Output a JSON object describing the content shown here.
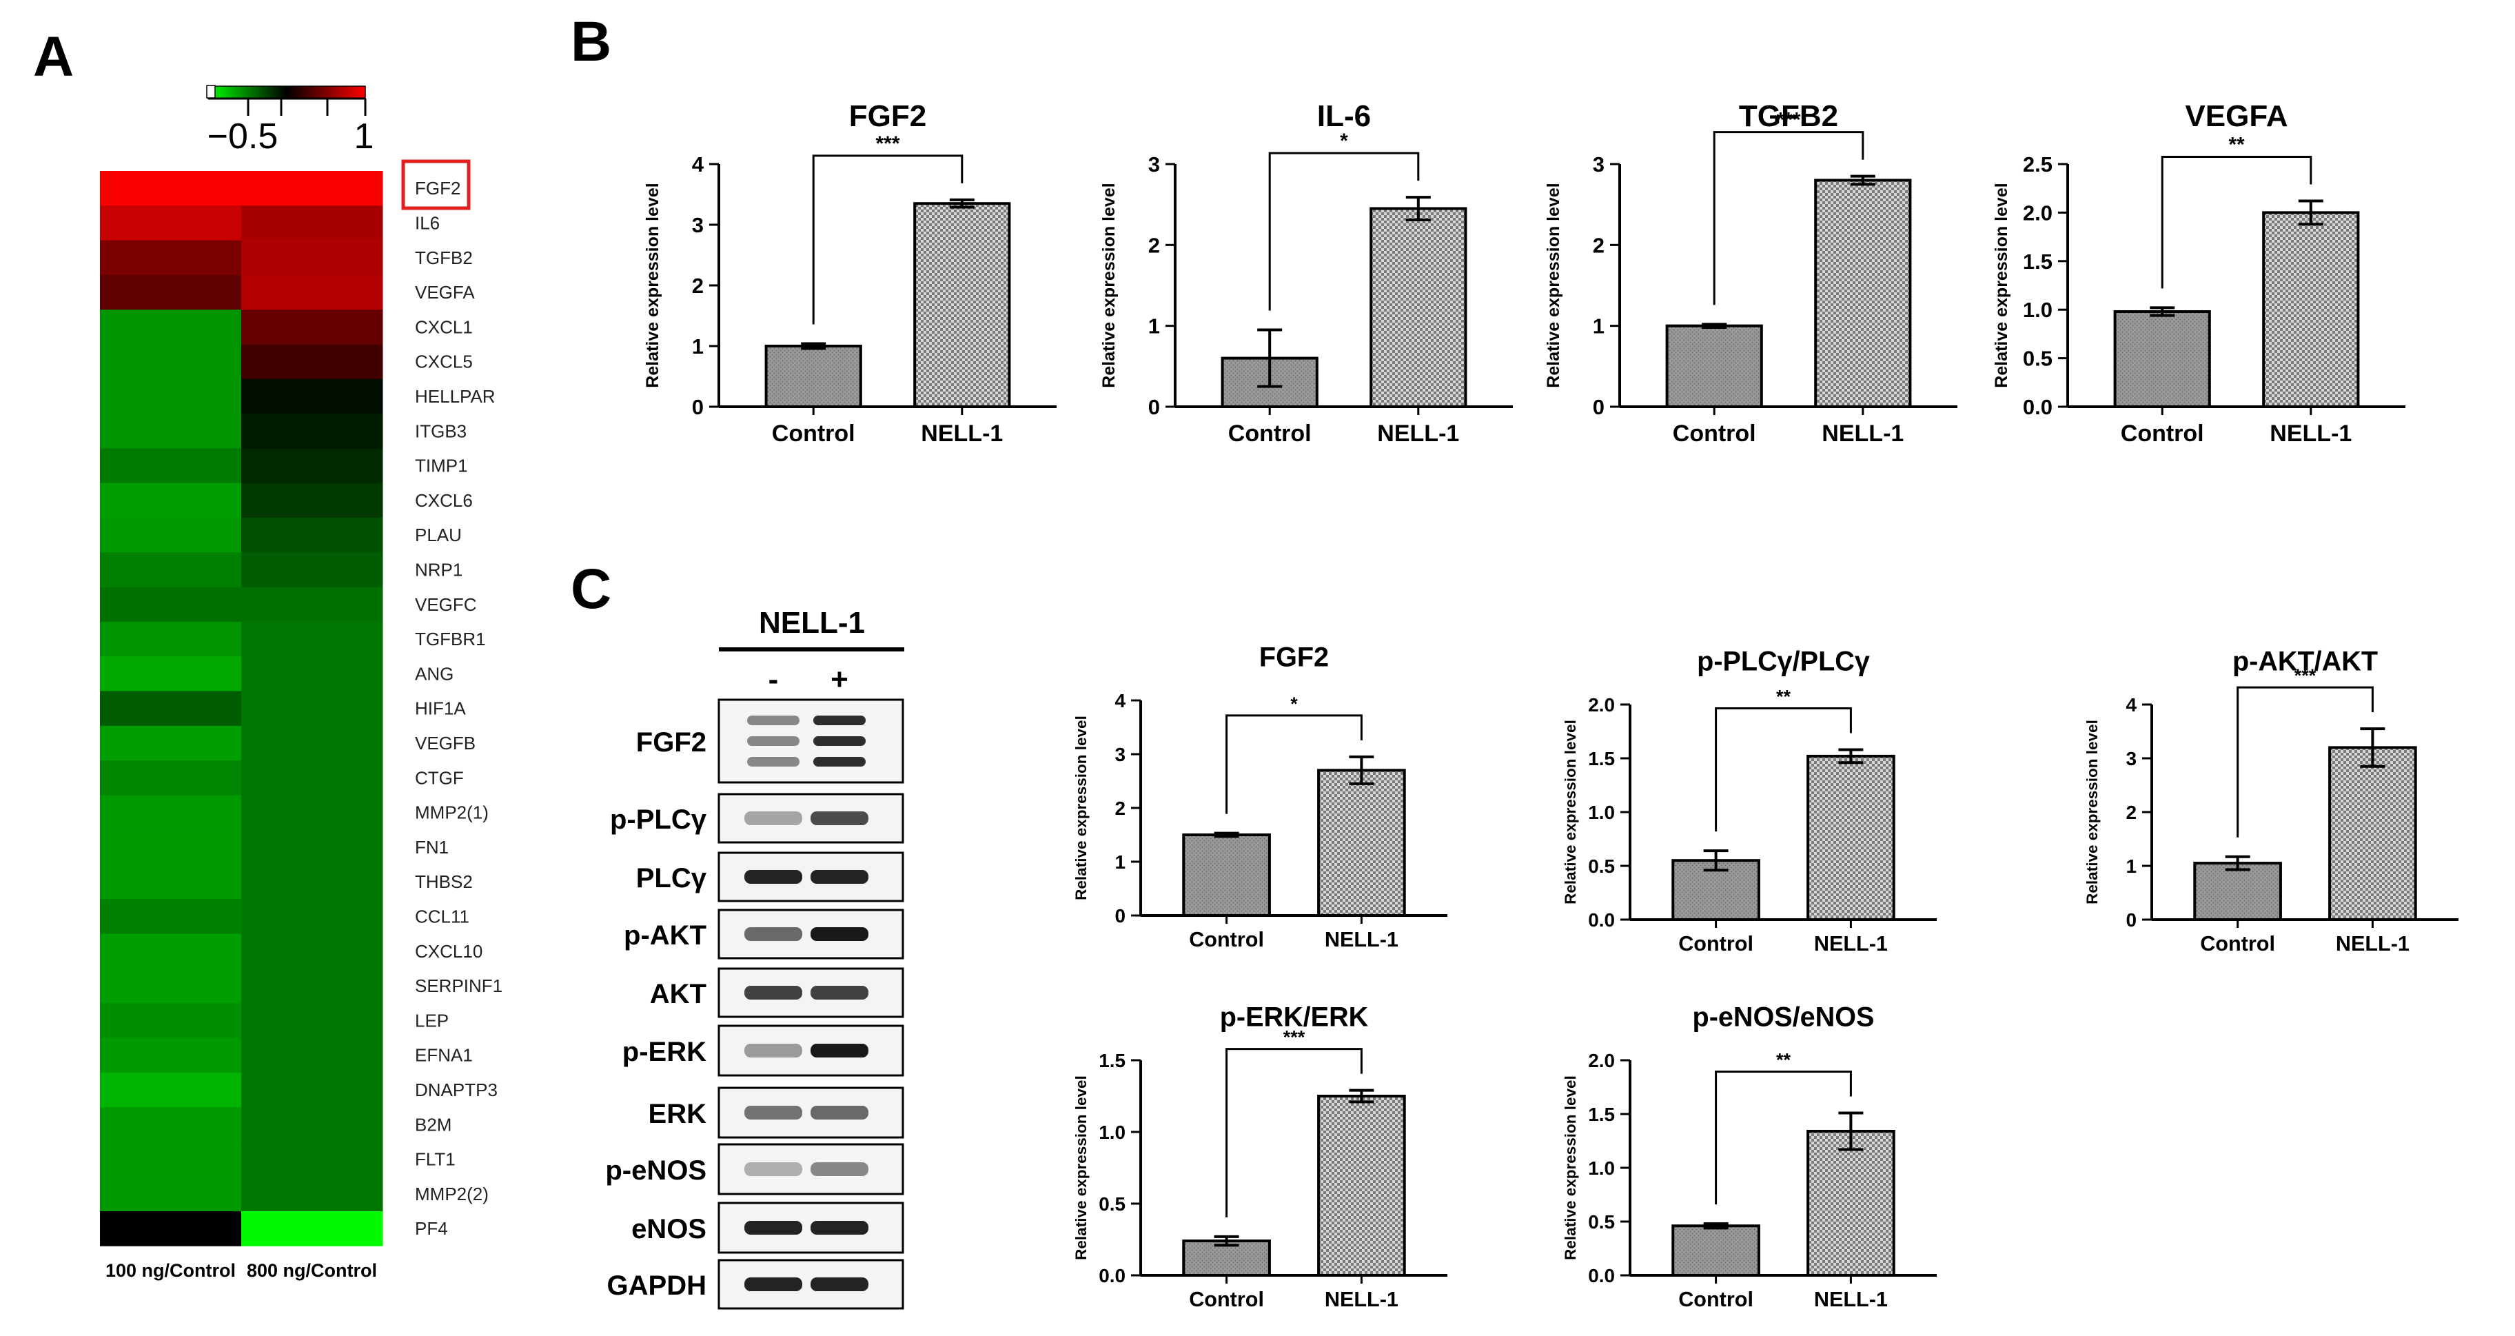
{
  "panel_labels": {
    "a": "A",
    "b": "B",
    "c": "C"
  },
  "colors": {
    "bar_fill": "#9a9a9a",
    "axis": "#000000",
    "highlight_box": "#e02020",
    "heat_low": "#00ff00",
    "heat_mid": "#000000",
    "heat_high": "#ff0000",
    "band": "#202020"
  },
  "heatmap": {
    "scale": {
      "min": -1,
      "max": 1,
      "tick_labels": [
        "−0.5",
        "1"
      ]
    },
    "columns": [
      "100 ng/Control",
      "800 ng/Control"
    ],
    "genes": [
      "FGF2",
      "IL6",
      "TGFB2",
      "VEGFA",
      "CXCL1",
      "CXCL5",
      "HELLPAR",
      "ITGB3",
      "TIMP1",
      "CXCL6",
      "PLAU",
      "NRP1",
      "VEGFC",
      "TGFBR1",
      "ANG",
      "HIF1A",
      "VEGFB",
      "CTGF",
      "MMP2(1)",
      "FN1",
      "THBS2",
      "CCL11",
      "CXCL10",
      "SERPINF1",
      "LEP",
      "EFNA1",
      "DNAPTP3",
      "B2M",
      "FLT1",
      "MMP2(2)",
      "PF4"
    ],
    "values": [
      [
        0.98,
        0.98
      ],
      [
        0.78,
        0.66
      ],
      [
        0.48,
        0.68
      ],
      [
        0.38,
        0.7
      ],
      [
        -0.58,
        0.4
      ],
      [
        -0.58,
        0.25
      ],
      [
        -0.58,
        -0.05
      ],
      [
        -0.58,
        -0.1
      ],
      [
        -0.48,
        -0.16
      ],
      [
        -0.62,
        -0.22
      ],
      [
        -0.6,
        -0.32
      ],
      [
        -0.5,
        -0.36
      ],
      [
        -0.44,
        -0.44
      ],
      [
        -0.58,
        -0.46
      ],
      [
        -0.66,
        -0.46
      ],
      [
        -0.36,
        -0.46
      ],
      [
        -0.62,
        -0.46
      ],
      [
        -0.52,
        -0.46
      ],
      [
        -0.6,
        -0.46
      ],
      [
        -0.6,
        -0.46
      ],
      [
        -0.6,
        -0.46
      ],
      [
        -0.5,
        -0.46
      ],
      [
        -0.62,
        -0.46
      ],
      [
        -0.62,
        -0.46
      ],
      [
        -0.56,
        -0.46
      ],
      [
        -0.6,
        -0.46
      ],
      [
        -0.7,
        -0.46
      ],
      [
        -0.6,
        -0.46
      ],
      [
        -0.6,
        -0.46
      ],
      [
        -0.6,
        -0.46
      ],
      [
        0.0,
        -0.98
      ]
    ],
    "highlighted_gene": "FGF2"
  },
  "chart_data": [
    {
      "panel": "B",
      "type": "bar",
      "title": "FGF2",
      "categories": [
        "Control",
        "NELL-1"
      ],
      "values": [
        1.0,
        3.35
      ],
      "errors": [
        0.04,
        0.06
      ],
      "ylabel": "Relative expression level",
      "ylim": [
        0,
        4
      ],
      "yticks": [
        "0",
        "1",
        "2",
        "3",
        "4"
      ],
      "yticks_values": [
        0,
        1,
        2,
        3,
        4
      ],
      "significance": "***"
    },
    {
      "panel": "B",
      "type": "bar",
      "title": "IL-6",
      "categories": [
        "Control",
        "NELL-1"
      ],
      "values": [
        0.6,
        2.45
      ],
      "errors": [
        0.35,
        0.14
      ],
      "ylabel": "Relative expression level",
      "ylim": [
        0,
        3
      ],
      "yticks": [
        "0",
        "1",
        "2",
        "3"
      ],
      "yticks_values": [
        0,
        1,
        2,
        3
      ],
      "significance": "*"
    },
    {
      "panel": "B",
      "type": "bar",
      "title": "TGFB2",
      "categories": [
        "Control",
        "NELL-1"
      ],
      "values": [
        1.0,
        2.8
      ],
      "errors": [
        0.02,
        0.05
      ],
      "ylabel": "Relative expression level",
      "ylim": [
        0,
        3
      ],
      "yticks": [
        "0",
        "1",
        "2",
        "3"
      ],
      "yticks_values": [
        0,
        1,
        2,
        3
      ],
      "significance": "***"
    },
    {
      "panel": "B",
      "type": "bar",
      "title": "VEGFA",
      "categories": [
        "Control",
        "NELL-1"
      ],
      "values": [
        0.98,
        2.0
      ],
      "errors": [
        0.04,
        0.12
      ],
      "ylabel": "Relative expression level",
      "ylim": [
        0,
        2.5
      ],
      "yticks": [
        "0.0",
        "0.5",
        "1.0",
        "1.5",
        "2.0",
        "2.5"
      ],
      "yticks_values": [
        0,
        0.5,
        1,
        1.5,
        2,
        2.5
      ],
      "significance": "**"
    },
    {
      "panel": "C",
      "type": "bar",
      "title": "FGF2",
      "categories": [
        "Control",
        "NELL-1"
      ],
      "values": [
        1.5,
        2.7
      ],
      "errors": [
        0.03,
        0.25
      ],
      "ylabel": "Relative expression level",
      "ylim": [
        0,
        4
      ],
      "yticks": [
        "0",
        "1",
        "2",
        "3",
        "4"
      ],
      "yticks_values": [
        0,
        1,
        2,
        3,
        4
      ],
      "significance": "*"
    },
    {
      "panel": "C",
      "type": "bar",
      "title": "p-PLCγ/PLCγ",
      "categories": [
        "Control",
        "NELL-1"
      ],
      "values": [
        0.55,
        1.52
      ],
      "errors": [
        0.09,
        0.06
      ],
      "ylabel": "Relative expression level",
      "ylim": [
        0,
        2.0
      ],
      "yticks": [
        "0.0",
        "0.5",
        "1.0",
        "1.5",
        "2.0"
      ],
      "yticks_values": [
        0,
        0.5,
        1,
        1.5,
        2
      ],
      "significance": "**"
    },
    {
      "panel": "C",
      "type": "bar",
      "title": "p-AKT/AKT",
      "categories": [
        "Control",
        "NELL-1"
      ],
      "values": [
        1.05,
        3.2
      ],
      "errors": [
        0.12,
        0.35
      ],
      "ylabel": "Relative expression level",
      "ylim": [
        0,
        4
      ],
      "yticks": [
        "0",
        "1",
        "2",
        "3",
        "4"
      ],
      "yticks_values": [
        0,
        1,
        2,
        3,
        4
      ],
      "significance": "***"
    },
    {
      "panel": "C",
      "type": "bar",
      "title": "p-ERK/ERK",
      "categories": [
        "Control",
        "NELL-1"
      ],
      "values": [
        0.24,
        1.25
      ],
      "errors": [
        0.03,
        0.04
      ],
      "ylabel": "Relative expression level",
      "ylim": [
        0,
        1.5
      ],
      "yticks": [
        "0.0",
        "0.5",
        "1.0",
        "1.5"
      ],
      "yticks_values": [
        0,
        0.5,
        1,
        1.5
      ],
      "significance": "***"
    },
    {
      "panel": "C",
      "type": "bar",
      "title": "p-eNOS/eNOS",
      "categories": [
        "Control",
        "NELL-1"
      ],
      "values": [
        0.46,
        1.34
      ],
      "errors": [
        0.02,
        0.17
      ],
      "ylabel": "Relative expression level",
      "ylim": [
        0,
        2.0
      ],
      "yticks": [
        "0.0",
        "0.5",
        "1.0",
        "1.5",
        "2.0"
      ],
      "yticks_values": [
        0,
        0.5,
        1,
        1.5,
        2
      ],
      "significance": "**"
    }
  ],
  "western": {
    "title": "NELL-1",
    "lanes": [
      "-",
      "+"
    ],
    "rows": [
      {
        "label": "FGF2",
        "intensity": [
          0.45,
          0.9
        ],
        "triple": true
      },
      {
        "label": "p-PLCγ",
        "intensity": [
          0.3,
          0.75
        ]
      },
      {
        "label": "PLCγ",
        "intensity": [
          0.95,
          0.95
        ]
      },
      {
        "label": "p-AKT",
        "intensity": [
          0.6,
          1.0
        ]
      },
      {
        "label": "AKT",
        "intensity": [
          0.8,
          0.8
        ]
      },
      {
        "label": "p-ERK",
        "intensity": [
          0.35,
          1.0
        ]
      },
      {
        "label": "ERK",
        "intensity": [
          0.55,
          0.6
        ]
      },
      {
        "label": "p-eNOS",
        "intensity": [
          0.25,
          0.45
        ]
      },
      {
        "label": "eNOS",
        "intensity": [
          0.95,
          0.95
        ]
      },
      {
        "label": "GAPDH",
        "intensity": [
          0.95,
          0.95
        ]
      }
    ]
  }
}
